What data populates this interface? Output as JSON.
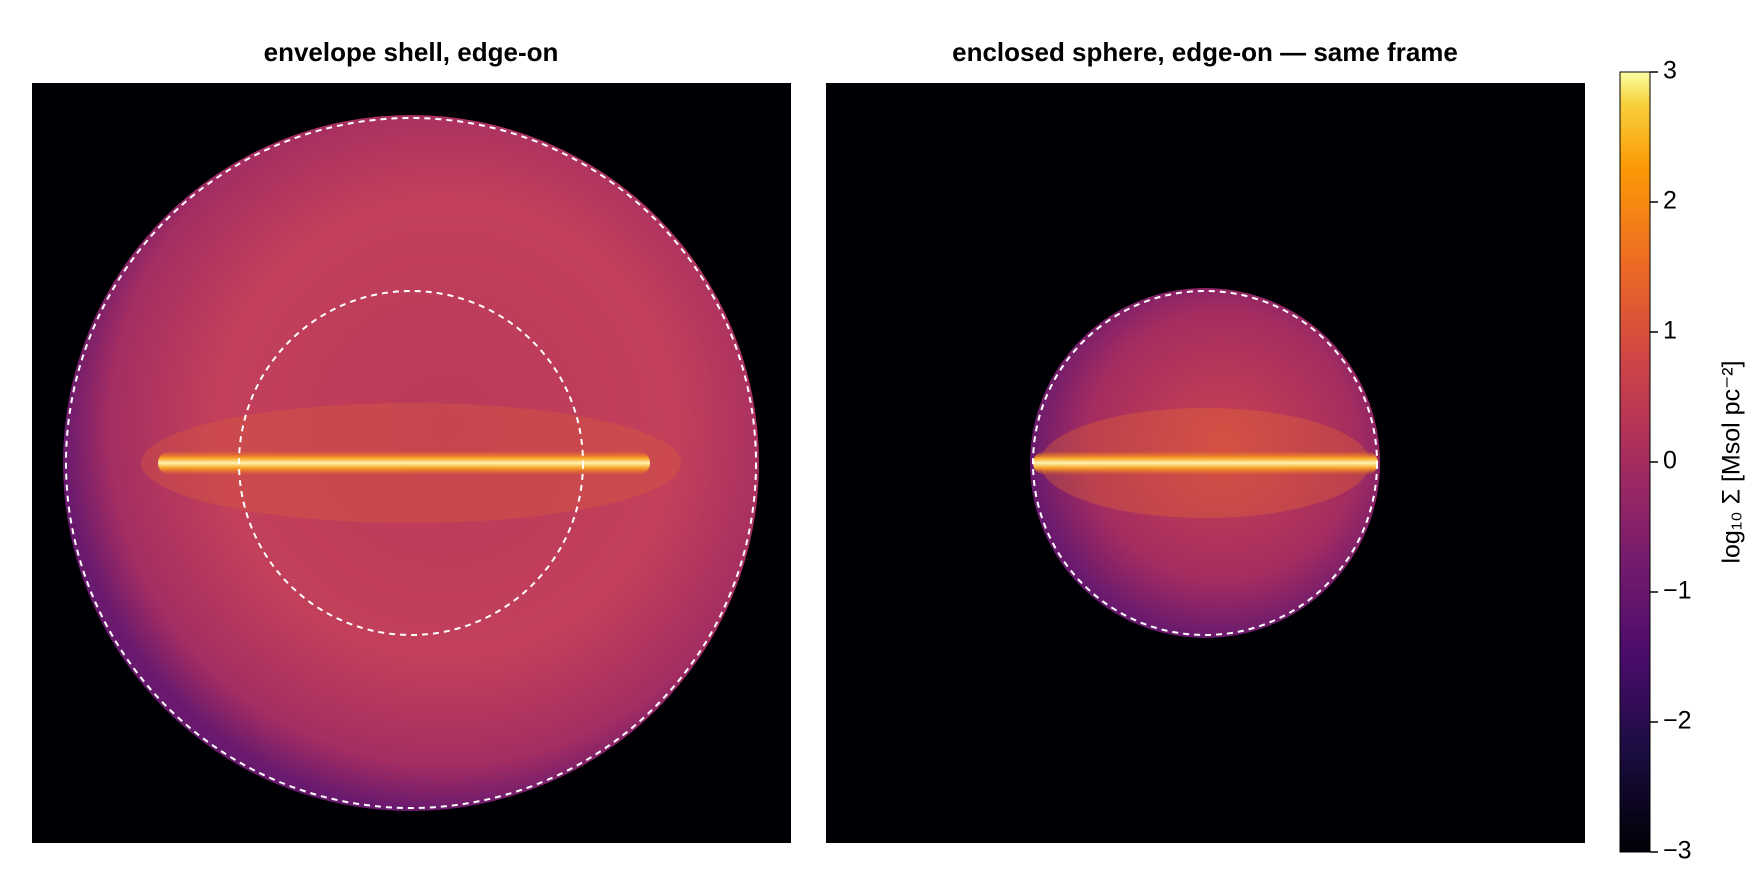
{
  "chart_data": [
    {
      "type": "image",
      "title": "envelope shell, edge-on"
    },
    {
      "type": "image",
      "title": "enclosed sphere, edge-on — same frame"
    },
    {
      "type": "colorbar",
      "label": "log₁₀ Σ  [Msol pc⁻²]",
      "ylim": [
        -3,
        3
      ],
      "yticks": [
        {
          "value": -3,
          "label": "−3"
        },
        {
          "value": -2,
          "label": "−2"
        },
        {
          "value": -1,
          "label": "−1"
        },
        0,
        1,
        2,
        3
      ]
    }
  ]
}
